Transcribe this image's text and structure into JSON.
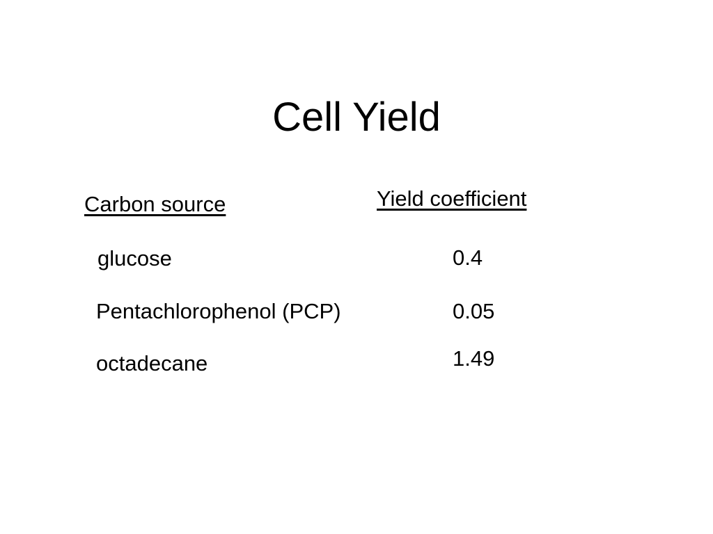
{
  "title": "Cell Yield",
  "headers": {
    "source": "Carbon source",
    "yield": "Yield coefficient"
  },
  "rows": [
    {
      "source": "glucose",
      "yield": "0.4"
    },
    {
      "source": "Pentachlorophenol (PCP)",
      "yield": "0.05"
    },
    {
      "source": "octadecane",
      "yield": "1.49"
    }
  ]
}
